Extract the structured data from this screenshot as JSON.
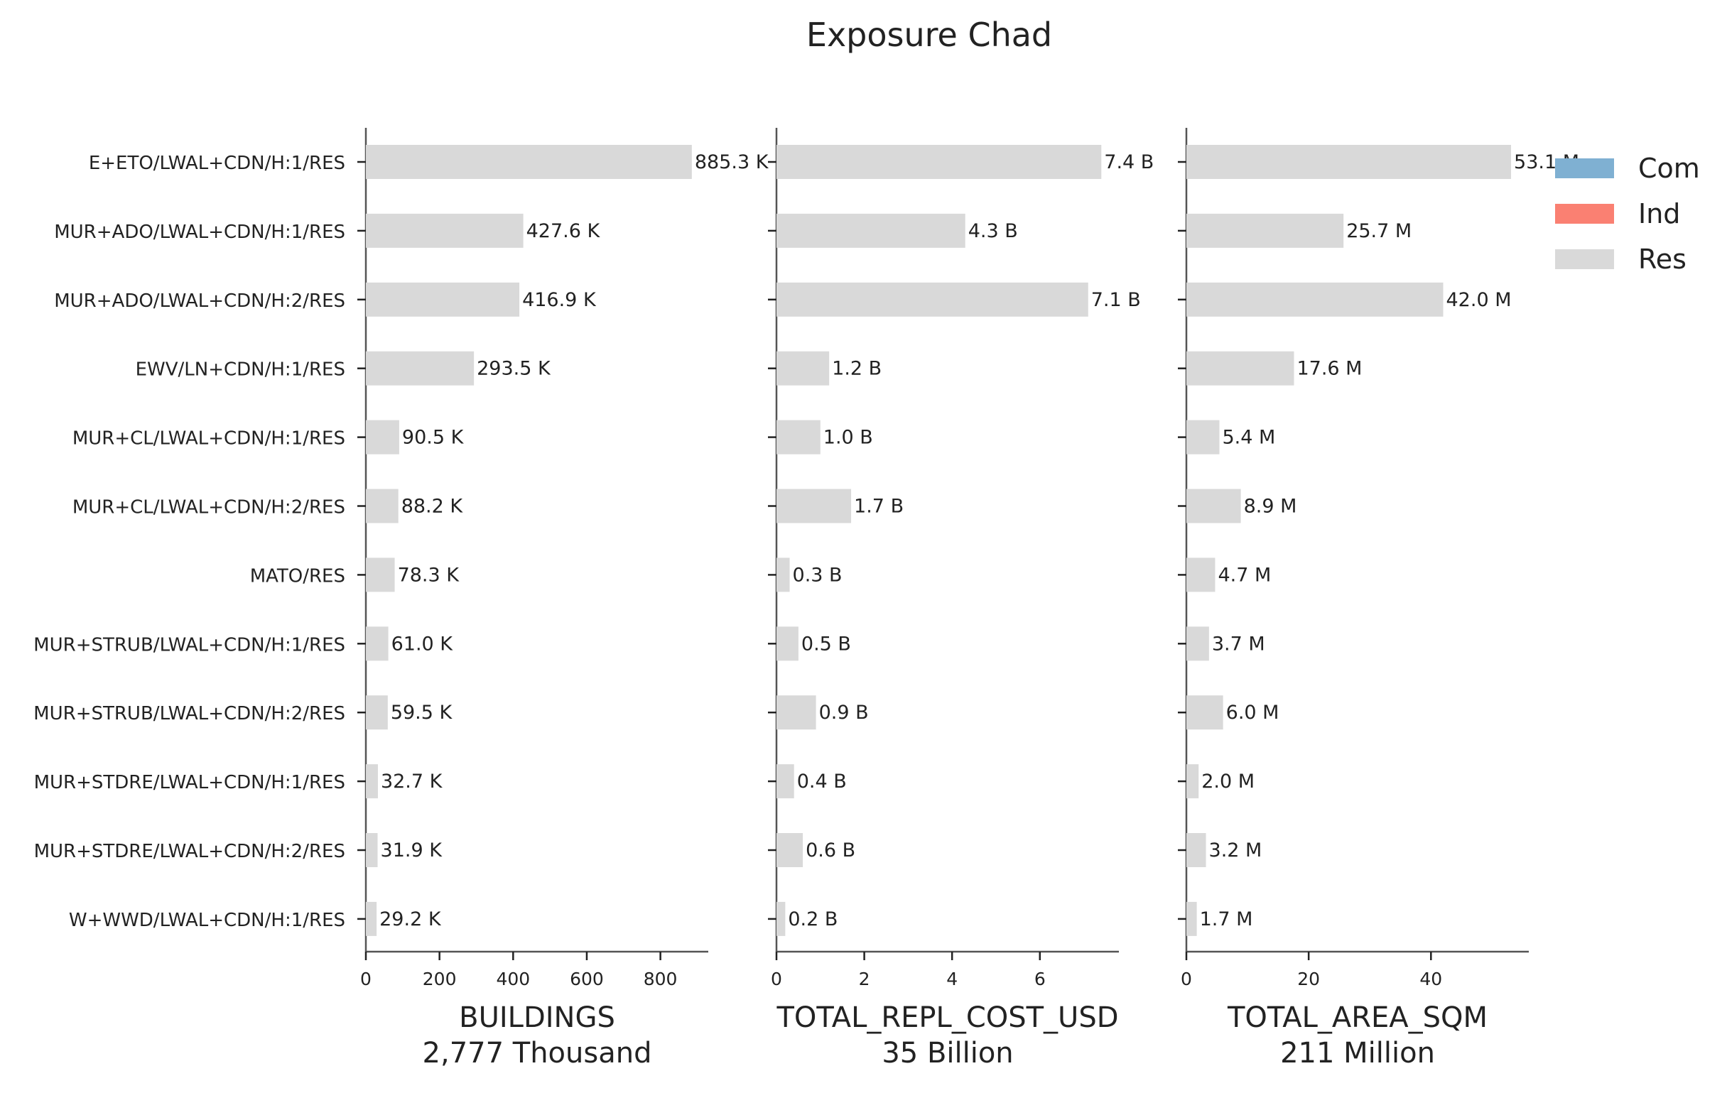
{
  "title": "Exposure Chad",
  "chart_data": {
    "type": "bar",
    "orientation": "horizontal",
    "stacked": true,
    "title": "Exposure Chad",
    "categories": [
      "E+ETO/LWAL+CDN/H:1/RES",
      "MUR+ADO/LWAL+CDN/H:1/RES",
      "MUR+ADO/LWAL+CDN/H:2/RES",
      "EWV/LN+CDN/H:1/RES",
      "MUR+CL/LWAL+CDN/H:1/RES",
      "MUR+CL/LWAL+CDN/H:2/RES",
      "MATO/RES",
      "MUR+STRUB/LWAL+CDN/H:1/RES",
      "MUR+STRUB/LWAL+CDN/H:2/RES",
      "MUR+STDRE/LWAL+CDN/H:1/RES",
      "MUR+STDRE/LWAL+CDN/H:2/RES",
      "W+WWD/LWAL+CDN/H:1/RES"
    ],
    "legend": {
      "placement": "top-right",
      "entries": [
        {
          "name": "Com",
          "color": "#7fb0d2"
        },
        {
          "name": "Ind",
          "color": "#fa8072"
        },
        {
          "name": "Res",
          "color": "#d9d9d9"
        }
      ]
    },
    "grid": false,
    "panels": [
      {
        "xlabel": "BUILDINGS",
        "subtitle": "2,777 Thousand",
        "xlim": [
          0,
          930
        ],
        "ticks": [
          0,
          200,
          400,
          600,
          800
        ],
        "tick_labels": [
          "0",
          "200",
          "400",
          "600",
          "800"
        ],
        "series": [
          {
            "name": "Res",
            "values": [
              885.3,
              427.6,
              416.9,
              293.5,
              90.5,
              88.2,
              78.3,
              61.0,
              59.5,
              32.7,
              31.9,
              29.2
            ]
          }
        ],
        "labels": [
          "885.3 K",
          "427.6 K",
          "416.9 K",
          "293.5 K",
          "90.5 K",
          "88.2 K",
          "78.3 K",
          "61.0 K",
          "59.5 K",
          "32.7 K",
          "31.9 K",
          "29.2 K"
        ]
      },
      {
        "xlabel": "TOTAL_REPL_COST_USD",
        "subtitle": "35 Billion",
        "xlim": [
          0,
          7.8
        ],
        "ticks": [
          0,
          2,
          4,
          6
        ],
        "tick_labels": [
          "0",
          "2",
          "4",
          "6"
        ],
        "series": [
          {
            "name": "Res",
            "values": [
              7.4,
              4.3,
              7.1,
              1.2,
              1.0,
              1.7,
              0.3,
              0.5,
              0.9,
              0.4,
              0.6,
              0.2
            ]
          }
        ],
        "labels": [
          "7.4 B",
          "4.3 B",
          "7.1 B",
          "1.2 B",
          "1.0 B",
          "1.7 B",
          "0.3 B",
          "0.5 B",
          "0.9 B",
          "0.4 B",
          "0.6 B",
          "0.2 B"
        ]
      },
      {
        "xlabel": "TOTAL_AREA_SQM",
        "subtitle": "211 Million",
        "xlim": [
          0,
          56
        ],
        "ticks": [
          0,
          20,
          40
        ],
        "tick_labels": [
          "0",
          "20",
          "40"
        ],
        "series": [
          {
            "name": "Res",
            "values": [
              53.1,
              25.7,
              42.0,
              17.6,
              5.4,
              8.9,
              4.7,
              3.7,
              6.0,
              2.0,
              3.2,
              1.7
            ]
          }
        ],
        "labels": [
          "53.1 M",
          "25.7 M",
          "42.0 M",
          "17.6 M",
          "5.4 M",
          "8.9 M",
          "4.7 M",
          "3.7 M",
          "6.0 M",
          "2.0 M",
          "3.2 M",
          "1.7 M"
        ]
      }
    ]
  }
}
